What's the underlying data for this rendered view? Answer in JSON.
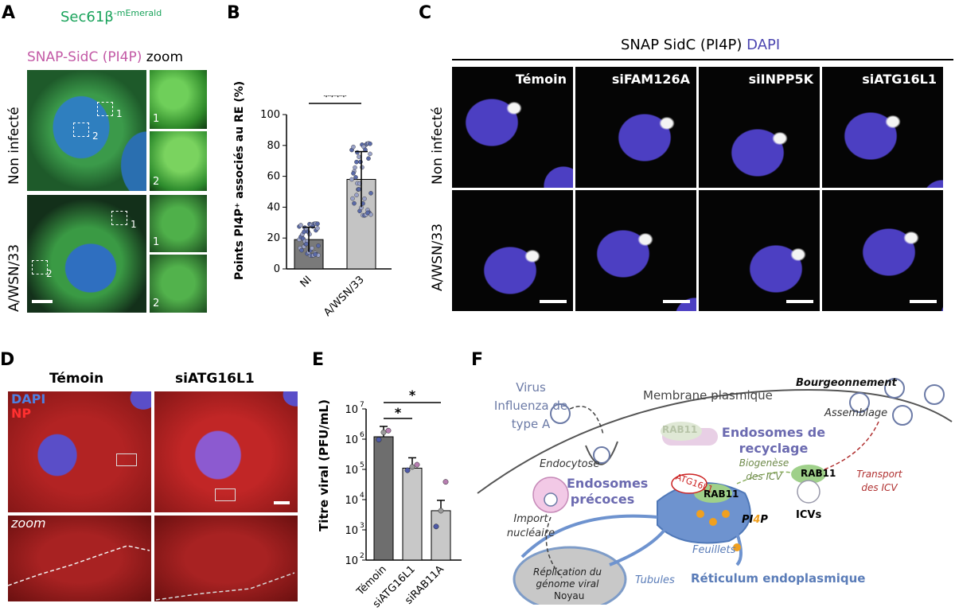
{
  "panels": {
    "A": {
      "label": "A",
      "title_line1": "Sec61β",
      "title_line1_sup": "-mEmerald",
      "title_line2": "SNAP-SidC (PI4P)",
      "title_zoom": "zoom",
      "row_labels": [
        "Non infecté",
        "A/WSN/33"
      ],
      "zoom_numbers": [
        "1",
        "2"
      ],
      "box_labels": [
        "1",
        "2"
      ]
    },
    "B": {
      "label": "B",
      "significance": "****"
    },
    "C": {
      "label": "C",
      "header": "SNAP SidC (PI4P)",
      "header_dapi": "DAPI",
      "columns": [
        "Témoin",
        "siFAM126A",
        "siINPP5K",
        "siATG16L1"
      ],
      "row_labels": [
        "Non infecté",
        "A/WSN/33"
      ]
    },
    "D": {
      "label": "D",
      "columns": [
        "Témoin",
        "siATG16L1"
      ],
      "legend_dapi": "DAPI",
      "legend_np": "NP",
      "zoom_label": "zoom"
    },
    "E": {
      "label": "E",
      "sig": [
        "*",
        "*"
      ]
    },
    "F": {
      "label": "F",
      "virus": "Virus Influenza de type A",
      "membrane": "Membrane plasmique",
      "bourgeon": "Bourgeonnement",
      "assemblage": "Assemblage",
      "endosomes_recyclage": "Endosomes de recyclage",
      "rab11": "RAB11",
      "endocytose": "Endocytose",
      "endosomes_precoces": "Endosomes précoces",
      "biogenese": "Biogenèse des ICV",
      "transport": "Transport des ICV",
      "atg16l1": "ATG16L1",
      "pi4p_pi": "PI",
      "pi4p_4": "4",
      "pi4p_p": "P",
      "icvs": "ICVs",
      "import": "Import nucléaire",
      "replication": "Réplication du génome viral",
      "noyau": "Noyau",
      "feuillets": "Feuillets",
      "tubules": "Tubules",
      "reticulum": "Réticulum endoplasmique"
    }
  },
  "chart_data": [
    {
      "type": "bar",
      "panel": "B",
      "categories": [
        "NI",
        "A/WSN/33"
      ],
      "values": [
        19,
        58
      ],
      "errors": [
        8,
        18
      ],
      "ylabel": "Points PI4P⁺ associés au RE (%)",
      "ylim": [
        0,
        100
      ],
      "yticks": [
        0,
        20,
        40,
        60,
        80,
        100
      ],
      "colors": [
        "#7a7a7a",
        "#c4c4c4"
      ]
    },
    {
      "type": "bar",
      "panel": "E",
      "categories": [
        "Témoin",
        "siATG16L1",
        "siRAB11A"
      ],
      "values": [
        1200000,
        110000,
        4300
      ],
      "ylabel": "Titre viral (PFU/mL)",
      "yscale": "log",
      "ylim": [
        100,
        10000000
      ],
      "ytick_exponents": [
        2,
        3,
        4,
        5,
        6,
        7
      ],
      "ytick_base": "10",
      "colors": [
        "#6e6e6e",
        "#c8c8c8",
        "#c8c8c8"
      ]
    }
  ]
}
